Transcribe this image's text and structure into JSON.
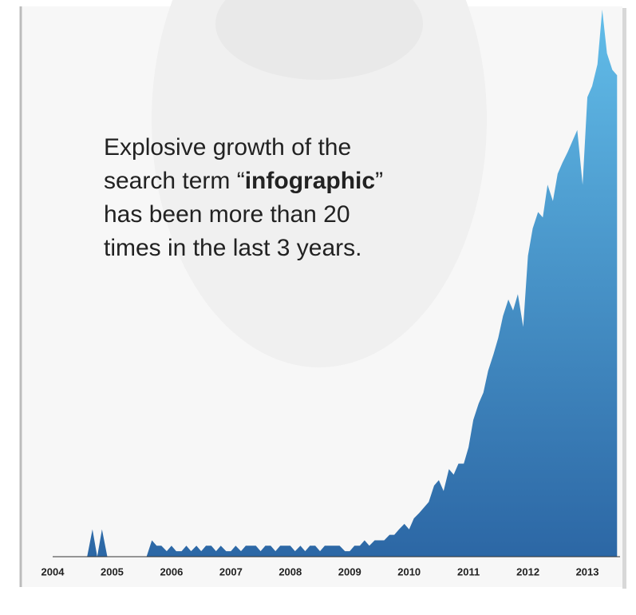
{
  "chart_data": {
    "type": "area",
    "annotation": [
      [
        {
          "text": "Explosive growth of the",
          "bold": false
        }
      ],
      [
        {
          "text": "search term “",
          "bold": false
        },
        {
          "text": "infographic",
          "bold": true
        },
        {
          "text": "”",
          "bold": false
        }
      ],
      [
        {
          "text": "has been more than 20",
          "bold": false
        }
      ],
      [
        {
          "text": "times in the last 3 years.",
          "bold": false
        }
      ]
    ],
    "x": [
      2004,
      2004.08,
      2004.17,
      2004.25,
      2004.33,
      2004.42,
      2004.5,
      2004.58,
      2004.67,
      2004.75,
      2004.83,
      2004.92,
      2005,
      2005.08,
      2005.17,
      2005.25,
      2005.33,
      2005.42,
      2005.5,
      2005.58,
      2005.67,
      2005.75,
      2005.83,
      2005.92,
      2006,
      2006.08,
      2006.17,
      2006.25,
      2006.33,
      2006.42,
      2006.5,
      2006.58,
      2006.67,
      2006.75,
      2006.83,
      2006.92,
      2007,
      2007.08,
      2007.17,
      2007.25,
      2007.33,
      2007.42,
      2007.5,
      2007.58,
      2007.67,
      2007.75,
      2007.83,
      2007.92,
      2008,
      2008.08,
      2008.17,
      2008.25,
      2008.33,
      2008.42,
      2008.5,
      2008.58,
      2008.67,
      2008.75,
      2008.83,
      2008.92,
      2009,
      2009.08,
      2009.17,
      2009.25,
      2009.33,
      2009.42,
      2009.5,
      2009.58,
      2009.67,
      2009.75,
      2009.83,
      2009.92,
      2010,
      2010.08,
      2010.17,
      2010.25,
      2010.33,
      2010.42,
      2010.5,
      2010.58,
      2010.67,
      2010.75,
      2010.83,
      2010.92,
      2011,
      2011.08,
      2011.17,
      2011.25,
      2011.33,
      2011.42,
      2011.5,
      2011.58,
      2011.67,
      2011.75,
      2011.83,
      2011.92,
      2012,
      2012.08,
      2012.17,
      2012.25,
      2012.33,
      2012.42,
      2012.5,
      2012.58,
      2012.67,
      2012.75,
      2012.83,
      2012.92,
      2013,
      2013.08,
      2013.17,
      2013.25,
      2013.33,
      2013.42,
      2013.5
    ],
    "values": [
      0,
      0,
      0,
      0,
      0,
      0,
      0,
      0,
      5,
      0,
      5,
      0,
      0,
      0,
      0,
      0,
      0,
      0,
      0,
      0,
      3,
      2,
      2,
      1,
      2,
      1,
      1,
      2,
      1,
      2,
      1,
      2,
      2,
      1,
      2,
      1,
      1,
      2,
      1,
      2,
      2,
      2,
      1,
      2,
      2,
      1,
      2,
      2,
      2,
      1,
      2,
      1,
      2,
      2,
      1,
      2,
      2,
      2,
      2,
      1,
      1,
      2,
      2,
      3,
      2,
      3,
      3,
      3,
      4,
      4,
      5,
      6,
      5,
      7,
      8,
      9,
      10,
      13,
      14,
      12,
      16,
      15,
      17,
      17,
      20,
      25,
      28,
      30,
      34,
      37,
      40,
      44,
      47,
      45,
      48,
      42,
      55,
      60,
      63,
      62,
      68,
      65,
      70,
      72,
      74,
      76,
      78,
      68,
      84,
      86,
      90,
      100,
      92,
      89,
      88
    ],
    "gradient": [
      "#62bde9",
      "#2c67a5"
    ],
    "xlim": [
      2004,
      2013.55
    ],
    "ylim": [
      0,
      100
    ],
    "xticks": [
      2004,
      2005,
      2006,
      2007,
      2008,
      2009,
      2010,
      2011,
      2012,
      2013
    ]
  }
}
